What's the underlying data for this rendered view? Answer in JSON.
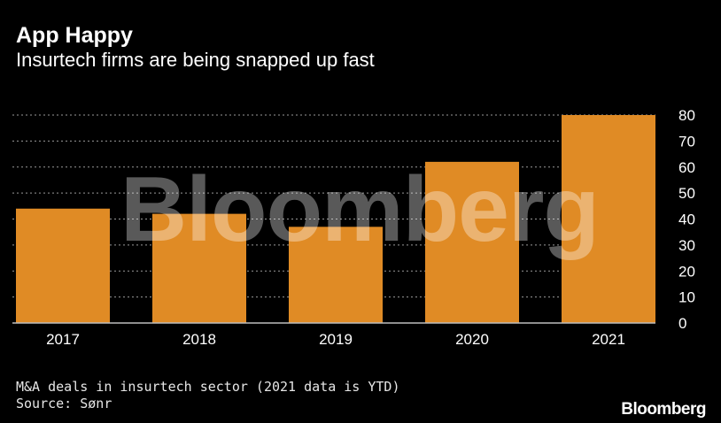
{
  "header": {
    "title": "App Happy",
    "subtitle": "Insurtech firms are being snapped up fast"
  },
  "footer": {
    "note": "M&A deals in insurtech sector (2021 data is YTD)",
    "source": "Source: Sønr",
    "logo": "Bloomberg"
  },
  "watermark": "Bloomberg",
  "colors": {
    "background": "#000000",
    "bar": "#e08b25",
    "grid": "#9a9a9a",
    "text": "#ffffff"
  },
  "chart_data": {
    "type": "bar",
    "categories": [
      "2017",
      "2018",
      "2019",
      "2020",
      "2021"
    ],
    "values": [
      44,
      42,
      37,
      62,
      80
    ],
    "ylim": [
      0,
      80
    ],
    "yticks": [
      0,
      10,
      20,
      30,
      40,
      50,
      60,
      70,
      80
    ],
    "ytick_labels": [
      "0",
      "10",
      "20",
      "30",
      "40",
      "50",
      "60",
      "70",
      "80"
    ],
    "y_axis_side": "right",
    "grid": true,
    "xlabel": "",
    "ylabel": ""
  }
}
